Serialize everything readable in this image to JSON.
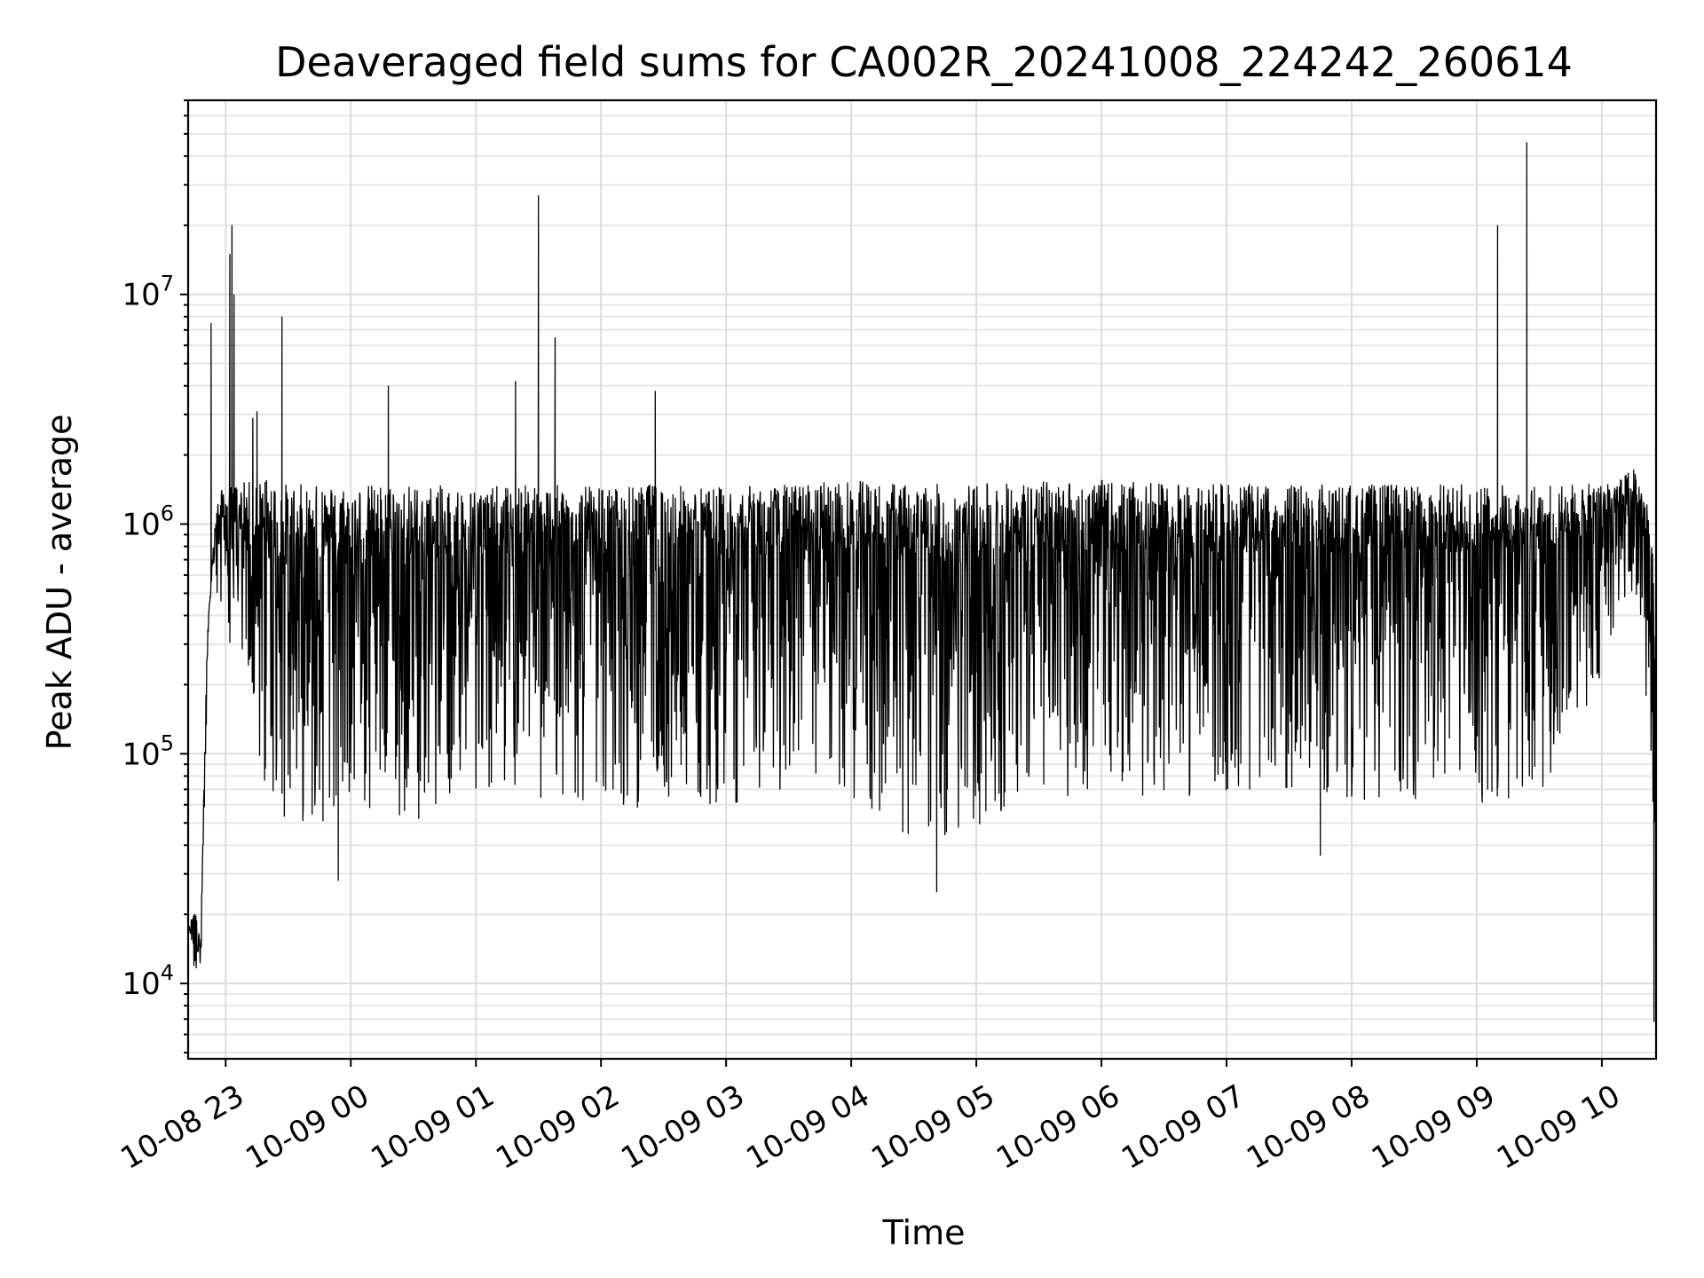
{
  "chart_data": {
    "type": "line",
    "title": "Deaveraged field sums for CA002R_20241008_224242_260614",
    "xlabel": "Time",
    "ylabel": "Peak ADU - average",
    "yscale": "log",
    "ylim": [
      4700,
      70000000
    ],
    "xlim": [
      "2024-10-08 22:42",
      "2024-10-09 10:26"
    ],
    "grid": true,
    "line_color": "#000000",
    "x_ticks": [
      {
        "t": "2024-10-08 23:00",
        "label": "10-08 23"
      },
      {
        "t": "2024-10-09 00:00",
        "label": "10-09 00"
      },
      {
        "t": "2024-10-09 01:00",
        "label": "10-09 01"
      },
      {
        "t": "2024-10-09 02:00",
        "label": "10-09 02"
      },
      {
        "t": "2024-10-09 03:00",
        "label": "10-09 03"
      },
      {
        "t": "2024-10-09 04:00",
        "label": "10-09 04"
      },
      {
        "t": "2024-10-09 05:00",
        "label": "10-09 05"
      },
      {
        "t": "2024-10-09 06:00",
        "label": "10-09 06"
      },
      {
        "t": "2024-10-09 07:00",
        "label": "10-09 07"
      },
      {
        "t": "2024-10-09 08:00",
        "label": "10-09 08"
      },
      {
        "t": "2024-10-09 09:00",
        "label": "10-09 09"
      },
      {
        "t": "2024-10-09 10:00",
        "label": "10-09 10"
      }
    ],
    "y_ticks": [
      {
        "value": 10000,
        "base": "10",
        "exp": "4"
      },
      {
        "value": 100000,
        "base": "10",
        "exp": "5"
      },
      {
        "value": 1000000,
        "base": "10",
        "exp": "6"
      },
      {
        "value": 10000000,
        "base": "10",
        "exp": "7"
      }
    ],
    "series": [
      {
        "envelope": {
          "x": [
            "2024-10-08 22:42",
            "2024-10-08 22:45",
            "2024-10-08 22:48",
            "2024-10-08 22:51",
            "2024-10-08 22:54",
            "2024-10-08 22:57",
            "2024-10-08 23:05",
            "2024-10-08 23:20",
            "2024-10-08 23:30",
            "2024-10-08 23:45",
            "2024-10-09 00:00",
            "2024-10-09 00:30",
            "2024-10-09 01:00",
            "2024-10-09 01:30",
            "2024-10-09 02:00",
            "2024-10-09 02:30",
            "2024-10-09 03:00",
            "2024-10-09 03:30",
            "2024-10-09 04:00",
            "2024-10-09 04:30",
            "2024-10-09 05:00",
            "2024-10-09 05:30",
            "2024-10-09 06:00",
            "2024-10-09 06:30",
            "2024-10-09 07:00",
            "2024-10-09 07:30",
            "2024-10-09 08:00",
            "2024-10-09 08:30",
            "2024-10-09 09:00",
            "2024-10-09 09:30",
            "2024-10-09 10:00",
            "2024-10-09 10:10",
            "2024-10-09 10:15",
            "2024-10-09 10:20",
            "2024-10-09 10:24",
            "2024-10-09 10:26"
          ],
          "upper": [
            17000,
            22000,
            15000,
            300000,
            900000,
            1400000,
            1500000,
            1600000,
            1500000,
            1500000,
            1500000,
            1500000,
            1450000,
            1500000,
            1450000,
            1500000,
            1450000,
            1500000,
            1550000,
            1500000,
            1500000,
            1550000,
            1550000,
            1500000,
            1500000,
            1500000,
            1500000,
            1500000,
            1500000,
            1500000,
            1500000,
            1600000,
            1800000,
            1400000,
            1000000,
            200000
          ],
          "lower": [
            17000,
            11000,
            10000,
            150000,
            500000,
            400000,
            250000,
            60000,
            50000,
            50000,
            50000,
            50000,
            70000,
            60000,
            55000,
            60000,
            60000,
            65000,
            60000,
            40000,
            45000,
            65000,
            65000,
            62000,
            65000,
            65000,
            62000,
            62000,
            60000,
            65000,
            200000,
            300000,
            500000,
            300000,
            8000,
            15000
          ]
        },
        "spikes": [
          {
            "t": "2024-10-08 22:53",
            "value": 7500000
          },
          {
            "t": "2024-10-08 23:02",
            "value": 15000000
          },
          {
            "t": "2024-10-08 23:03",
            "value": 20000000
          },
          {
            "t": "2024-10-08 23:04",
            "value": 10000000
          },
          {
            "t": "2024-10-08 23:13",
            "value": 2900000
          },
          {
            "t": "2024-10-08 23:15",
            "value": 3100000
          },
          {
            "t": "2024-10-08 23:27",
            "value": 8000000
          },
          {
            "t": "2024-10-09 00:18",
            "value": 4000000
          },
          {
            "t": "2024-10-09 01:19",
            "value": 4200000
          },
          {
            "t": "2024-10-09 01:30",
            "value": 27000000
          },
          {
            "t": "2024-10-09 01:38",
            "value": 6500000
          },
          {
            "t": "2024-10-09 02:26",
            "value": 3800000
          },
          {
            "t": "2024-10-09 09:10",
            "value": 20000000
          },
          {
            "t": "2024-10-09 09:24",
            "value": 46000000
          }
        ],
        "dips": [
          {
            "t": "2024-10-08 23:54",
            "value": 28000
          },
          {
            "t": "2024-10-09 04:41",
            "value": 25000
          },
          {
            "t": "2024-10-09 07:45",
            "value": 36000
          },
          {
            "t": "2024-10-09 10:25",
            "value": 6800
          }
        ]
      }
    ]
  }
}
